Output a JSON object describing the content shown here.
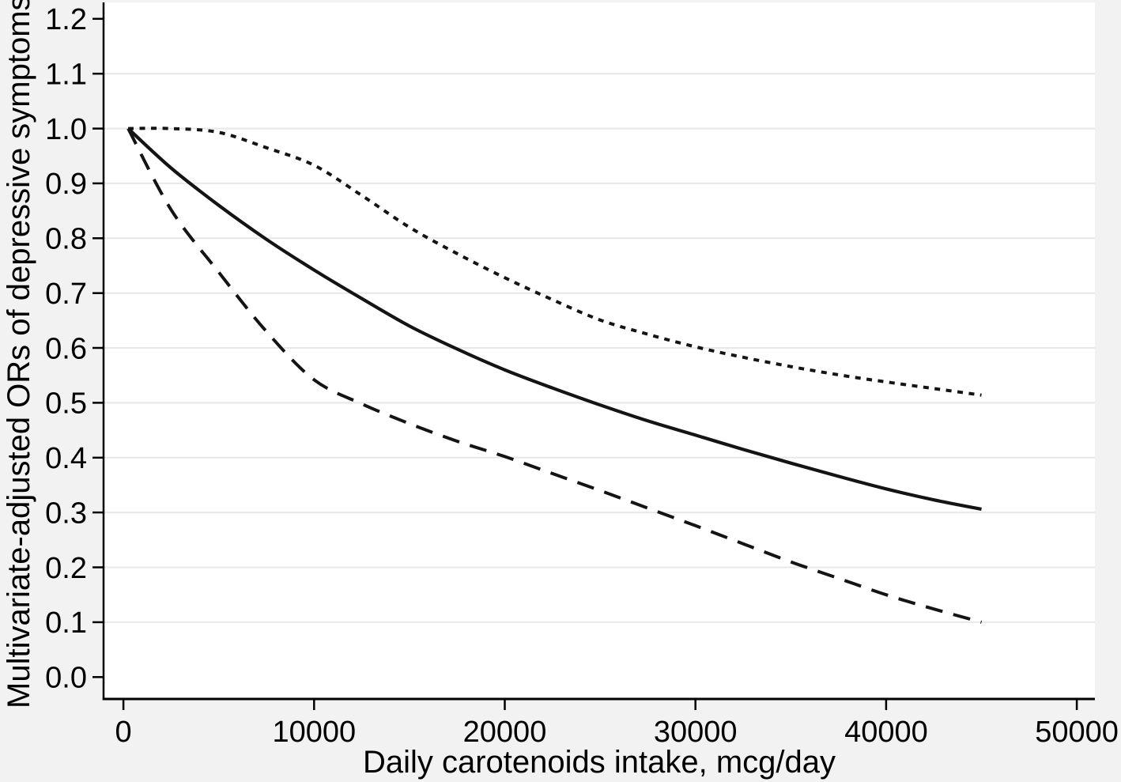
{
  "figure": {
    "background_color": "#f2f2f3",
    "plot_background_color": "#ffffff",
    "gridline_color": "#e8e8e9",
    "axis_color": "#000000",
    "line_color": "#141414",
    "text_color": "#000000"
  },
  "chart_data": {
    "type": "line",
    "title": "",
    "xlabel": "Daily carotenoids intake, mcg/day",
    "ylabel": "Multivariate-adjusted ORs of depressive symptoms",
    "legend": "none",
    "grid": "horizontal",
    "xlim": [
      -1040,
      50950
    ],
    "ylim": [
      -0.04,
      1.23
    ],
    "x_ticks": {
      "values": [
        0,
        10000,
        20000,
        30000,
        40000,
        50000
      ],
      "labels": [
        "0",
        "10000",
        "20000",
        "30000",
        "40000",
        "50000"
      ]
    },
    "y_ticks": {
      "values": [
        0.0,
        0.1,
        0.2,
        0.3,
        0.4,
        0.5,
        0.6,
        0.7,
        0.8,
        0.9,
        1.0,
        1.1,
        1.2
      ],
      "labels": [
        "0.0",
        "0.1",
        "0.2",
        "0.3",
        "0.4",
        "0.5",
        "0.6",
        "0.7",
        "0.8",
        "0.9",
        "1.0",
        "1.1",
        "1.2"
      ]
    },
    "gridlines_at": [
      0.1,
      0.2,
      0.3,
      0.4,
      0.5,
      0.6,
      0.7,
      0.8,
      0.9,
      1.0,
      1.1
    ],
    "x": [
      250,
      2500,
      5000,
      7500,
      10000,
      12500,
      15000,
      17500,
      20000,
      22500,
      25000,
      27500,
      30000,
      32500,
      35000,
      37500,
      40000,
      42500,
      45000
    ],
    "series": [
      {
        "id": "upper-confidence-bound",
        "line_style": "dotted",
        "values": [
          1.0,
          1.0,
          0.993,
          0.965,
          0.933,
          0.878,
          0.82,
          0.772,
          0.728,
          0.688,
          0.651,
          0.625,
          0.602,
          0.583,
          0.566,
          0.551,
          0.538,
          0.526,
          0.514
        ]
      },
      {
        "id": "odds-ratio-estimate",
        "line_style": "solid",
        "values": [
          1.0,
          0.928,
          0.86,
          0.798,
          0.742,
          0.69,
          0.64,
          0.598,
          0.56,
          0.527,
          0.496,
          0.467,
          0.441,
          0.415,
          0.39,
          0.366,
          0.343,
          0.323,
          0.306
        ]
      },
      {
        "id": "lower-confidence-bound",
        "line_style": "dashed",
        "values": [
          1.0,
          0.852,
          0.738,
          0.63,
          0.542,
          0.498,
          0.462,
          0.43,
          0.402,
          0.371,
          0.34,
          0.308,
          0.276,
          0.243,
          0.21,
          0.18,
          0.15,
          0.124,
          0.1
        ]
      }
    ]
  }
}
